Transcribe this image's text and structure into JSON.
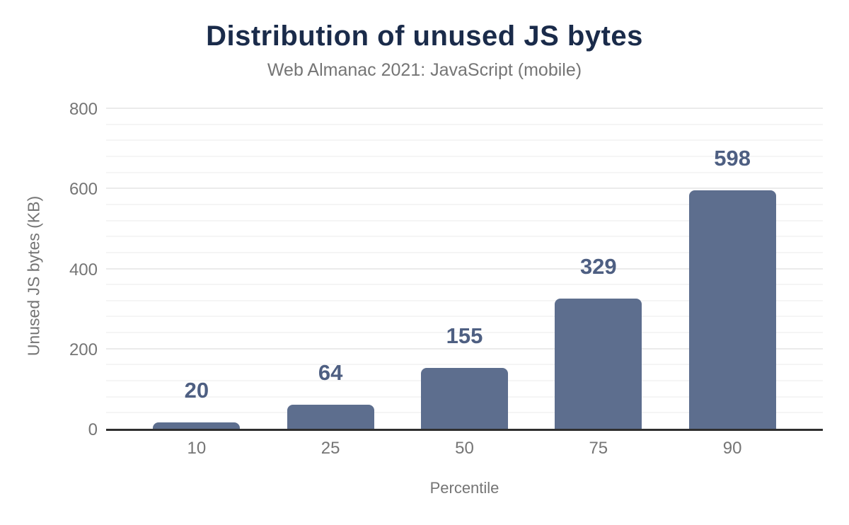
{
  "chart_data": {
    "type": "bar",
    "title": "Distribution of unused JS bytes",
    "subtitle": "Web Almanac 2021: JavaScript (mobile)",
    "xlabel": "Percentile",
    "ylabel": "Unused JS bytes (KB)",
    "categories": [
      "10",
      "25",
      "50",
      "75",
      "90"
    ],
    "values": [
      20,
      64,
      155,
      329,
      598
    ],
    "data_labels": [
      "20",
      "64",
      "155",
      "329",
      "598"
    ],
    "ylim": [
      0,
      800
    ],
    "yticks": [
      0,
      200,
      400,
      600,
      800
    ],
    "minor_gridline_step": 40,
    "grid": true,
    "legend": "none",
    "colors": {
      "bar": "#5d6e8e",
      "data_label": "#4e5f82",
      "title": "#1a2b4a",
      "axis_text": "#757575",
      "baseline": "#2f2f2f",
      "grid_major": "#ebebeb",
      "grid_minor": "#f5f5f5",
      "background": "#ffffff"
    }
  }
}
